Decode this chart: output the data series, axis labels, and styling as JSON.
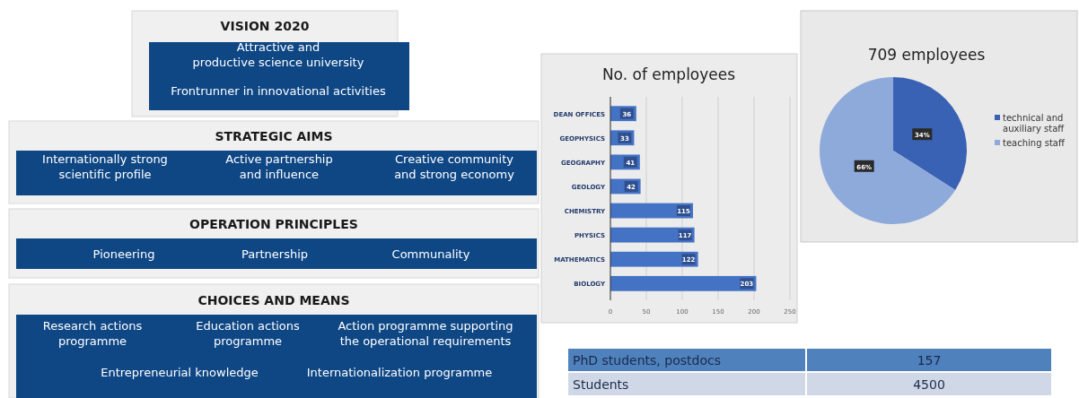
{
  "chart_data": [
    {
      "type": "other",
      "title": "VISION 2020",
      "annotations": [
        "Attractive and\nproductive science university",
        "Frontrunner in innovational activities"
      ]
    },
    {
      "type": "other",
      "title": "STRATEGIC AIMS",
      "annotations": [
        "Internationally strong\nscientific profile",
        "Active partnership\nand influence",
        "Creative community\nand strong economy"
      ]
    },
    {
      "type": "other",
      "title": "OPERATION PRINCIPLES",
      "annotations": [
        "Pioneering",
        "Partnership",
        "Communality"
      ]
    },
    {
      "type": "other",
      "title": "CHOICES AND MEANS",
      "annotations": [
        "Research actions\nprogramme",
        "Education actions\nprogramme",
        "Action programme supporting\nthe operational requirements",
        "Entrepreneurial knowledge",
        "Internationalization programme"
      ]
    },
    {
      "type": "bar",
      "title": "No. of employees",
      "orientation": "horizontal",
      "categories": [
        "DEAN OFFICES",
        "GEOPHYSICS",
        "GEOGRAPHY",
        "GEOLOGY",
        "CHEMISTRY",
        "PHYSICS",
        "MATHEMATICS",
        "BIOLOGY"
      ],
      "values": [
        36,
        33,
        41,
        42,
        115,
        117,
        122,
        203
      ],
      "color": "#4472c4",
      "xlim": [
        0,
        250
      ],
      "xticks": [
        0,
        50,
        100,
        150,
        200,
        250
      ],
      "grid": "x",
      "data_labels": true
    },
    {
      "type": "pie",
      "title": "709 employees",
      "categories": [
        "technical and auxiliary staff",
        "teaching staff"
      ],
      "values": [
        34,
        66
      ],
      "colors": [
        "#3a62b4",
        "#8eaadb"
      ],
      "value_labels": [
        "34%",
        "66%"
      ],
      "legend": "right"
    },
    {
      "type": "other",
      "categories": [
        "PhD students, postdocs",
        "Students"
      ],
      "values": [
        157,
        4500
      ],
      "data_labels": true
    }
  ]
}
